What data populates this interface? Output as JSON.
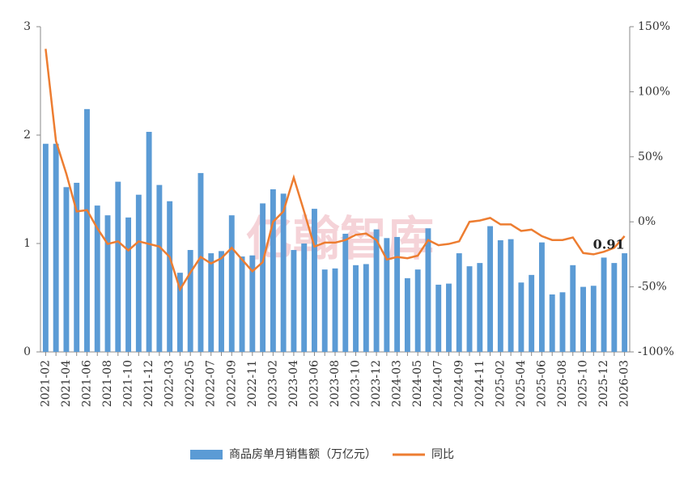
{
  "chart_data": {
    "type": "bar-line",
    "watermark": "亿翰智库",
    "categories": [
      "2021-02",
      null,
      "2021-04",
      null,
      "2021-06",
      null,
      "2021-08",
      null,
      "2021-10",
      null,
      "2021-12",
      null,
      "2022-03",
      null,
      "2022-05",
      null,
      "2022-07",
      null,
      "2022-09",
      null,
      "2022-11",
      null,
      "2023-02",
      null,
      "2023-04",
      null,
      "2023-06",
      null,
      "2023-08",
      null,
      "2023-10",
      null,
      "2023-12",
      null,
      "2024-03",
      null,
      "2024-05",
      null,
      "2024-07",
      null,
      "2024-09",
      null,
      "2024-11",
      null,
      "2025-02",
      null,
      "2025-04",
      null,
      "2025-06",
      null,
      "2025-08",
      null,
      "2025-10",
      null,
      "2025-12",
      null,
      "2026-03"
    ],
    "series": [
      {
        "name": "商品房单月销售额（万亿元）",
        "type": "bar",
        "color": "#5b9bd5",
        "values": [
          1.92,
          1.92,
          1.52,
          1.56,
          2.24,
          1.35,
          1.26,
          1.57,
          1.24,
          1.45,
          2.03,
          1.54,
          1.39,
          0.73,
          0.94,
          1.65,
          0.91,
          0.93,
          1.26,
          0.88,
          0.89,
          1.37,
          1.5,
          1.46,
          0.94,
          1.0,
          1.32,
          0.76,
          0.77,
          1.09,
          0.8,
          0.81,
          1.13,
          1.05,
          1.06,
          0.68,
          0.76,
          1.14,
          0.62,
          0.63,
          0.91,
          0.79,
          0.82,
          1.16,
          1.03,
          1.04,
          0.64,
          0.71,
          1.01,
          0.53,
          0.55,
          0.8,
          0.6,
          0.61,
          0.87,
          0.82,
          0.91
        ]
      },
      {
        "name": "同比",
        "type": "line",
        "axis": "y2",
        "color": "#ed7d31",
        "values": [
          133,
          62,
          37,
          8,
          9,
          -5,
          -17,
          -15,
          -22,
          -15,
          -17,
          -19,
          -27,
          -52,
          -39,
          -27,
          -32,
          -28,
          -20,
          -29,
          -38,
          -31,
          0,
          8,
          34,
          8,
          -19,
          -16,
          -16,
          -14,
          -10,
          -9,
          -14,
          -29,
          -27,
          -28,
          -26,
          -14,
          -18,
          -17,
          -15,
          0,
          1,
          3,
          -2,
          -2,
          -7,
          -6,
          -11,
          -14,
          -14,
          -12,
          -24,
          -25,
          -23,
          -20,
          -11
        ]
      }
    ],
    "ylim": [
      0,
      3
    ],
    "yticks": [
      0,
      1,
      2,
      3
    ],
    "y2lim": [
      -100,
      150
    ],
    "y2ticks": [
      {
        "value": -100,
        "label": "-100%"
      },
      {
        "value": -50,
        "label": "-50%"
      },
      {
        "value": 0,
        "label": "0%"
      },
      {
        "value": 50,
        "label": "50%"
      },
      {
        "value": 100,
        "label": "100%"
      },
      {
        "value": 150,
        "label": "150%"
      }
    ],
    "grid": false,
    "legend": "bottom"
  }
}
